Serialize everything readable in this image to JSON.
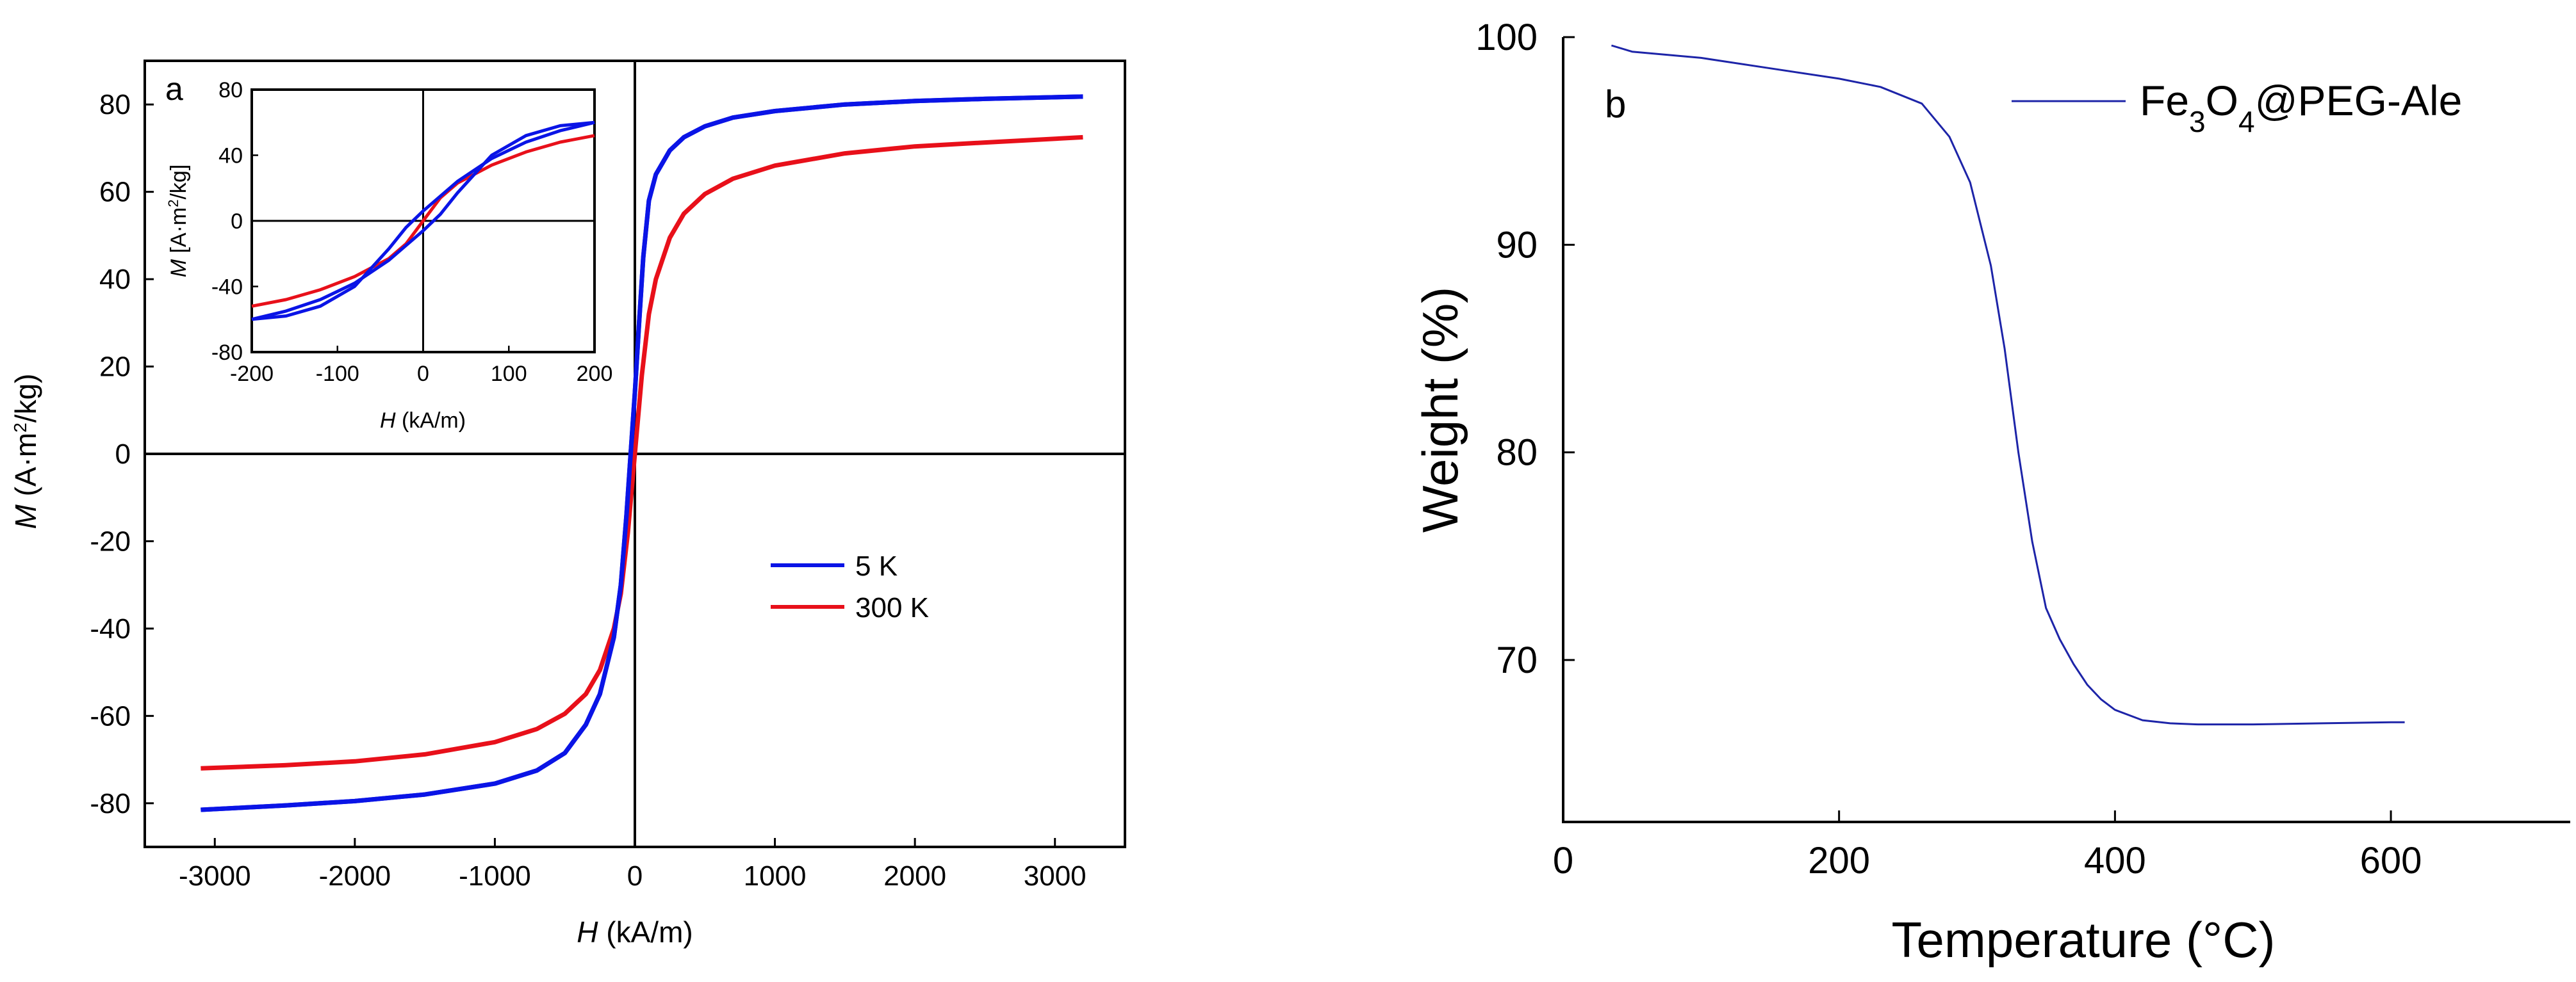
{
  "chart_data": [
    {
      "panel_label": "a",
      "type": "line",
      "title": "",
      "xlabel_symbol": "H",
      "xlabel_unit": " (kA/m)",
      "ylabel_symbol": "M",
      "ylabel_unit_pre": " (A·m",
      "ylabel_unit_sup": "2",
      "ylabel_unit_post": "/kg)",
      "xlim": [
        -3500,
        3500
      ],
      "ylim": [
        -90,
        90
      ],
      "x_ticks": [
        -3000,
        -2000,
        -1000,
        0,
        1000,
        2000,
        3000
      ],
      "x_tick_labels": [
        "-3000",
        "-2000",
        "-1000",
        "0",
        "1000",
        "2000",
        "3000"
      ],
      "y_ticks": [
        -80,
        -60,
        -40,
        -20,
        0,
        20,
        40,
        60,
        80
      ],
      "y_tick_labels": [
        "-80",
        "-60",
        "-40",
        "-20",
        "0",
        "20",
        "40",
        "60",
        "80"
      ],
      "grid": false,
      "legend_position": "center-right",
      "series": [
        {
          "name": "5 K",
          "color": "#0a14e6",
          "ascending": {
            "x": [
              -3100,
              -2500,
              -2000,
              -1500,
              -1000,
              -700,
              -500,
              -350,
              -250,
              -150,
              -100,
              -60,
              -30,
              0,
              30,
              60,
              100,
              150,
              250,
              350,
              500,
              700,
              1000,
              1500,
              2000,
              2500,
              3200
            ],
            "y": [
              -81.5,
              -80.5,
              -79.5,
              -78,
              -75.5,
              -72.5,
              -68.5,
              -62,
              -55,
              -42,
              -30,
              -14,
              0,
              14,
              30,
              45,
              58,
              64,
              69.5,
              72.5,
              75,
              77,
              78.5,
              80,
              80.8,
              81.3,
              81.8
            ]
          },
          "descending": {
            "x": [
              3200,
              2500,
              2000,
              1500,
              1000,
              700,
              500,
              350,
              250,
              150,
              100,
              60,
              30,
              0,
              -30,
              -60,
              -100,
              -150,
              -250,
              -350,
              -500,
              -700,
              -1000,
              -1500,
              -2000,
              -2500,
              -3100
            ],
            "y": [
              81.8,
              81.3,
              80.8,
              80,
              78.5,
              77,
              75,
              72.5,
              69.5,
              64,
              58,
              45,
              30,
              14,
              0,
              -14,
              -30,
              -42,
              -55,
              -62,
              -68.5,
              -72.5,
              -75.5,
              -78,
              -79.5,
              -80.5,
              -81.5
            ]
          }
        },
        {
          "name": "300 K",
          "color": "#e8101a",
          "ascending": {
            "x": [
              -3100,
              -2500,
              -2000,
              -1500,
              -1000,
              -700,
              -500,
              -350,
              -250,
              -150,
              -100,
              -50,
              0,
              50,
              100,
              150,
              250,
              350,
              500,
              700,
              1000,
              1500,
              2000,
              2500,
              3200
            ],
            "y": [
              -72,
              -71.3,
              -70.4,
              -68.8,
              -66,
              -63,
              -59.5,
              -55,
              -49.5,
              -40,
              -32,
              -18,
              0,
              18,
              32,
              40,
              49.5,
              55,
              59.5,
              63,
              66,
              68.8,
              70.4,
              71.3,
              72.5
            ]
          },
          "descending": null
        }
      ],
      "inset": {
        "xlabel_symbol": "H",
        "xlabel_unit": " (kA/m)",
        "ylabel_symbol": "M",
        "ylabel_unit_pre": " [A·m",
        "ylabel_unit_sup": "2",
        "ylabel_unit_post": "/kg]",
        "xlim": [
          -200,
          200
        ],
        "ylim": [
          -80,
          80
        ],
        "x_ticks": [
          -200,
          -100,
          0,
          100,
          200
        ],
        "x_tick_labels": [
          "-200",
          "-100",
          "0",
          "100",
          "200"
        ],
        "y_ticks": [
          -80,
          -40,
          0,
          40,
          80
        ],
        "y_tick_labels": [
          "-80",
          "-40",
          "0",
          "40",
          "80"
        ],
        "series": [
          {
            "name": "5 K",
            "color": "#0a14e6",
            "ascending": {
              "x": [
                -200,
                -160,
                -120,
                -80,
                -40,
                0,
                20,
                40,
                80,
                120,
                160,
                200
              ],
              "y": [
                -60,
                -55,
                -48,
                -38,
                -24,
                -6,
                4,
                17,
                40,
                52,
                58,
                60
              ]
            },
            "descending": {
              "x": [
                200,
                160,
                120,
                80,
                40,
                0,
                -20,
                -40,
                -80,
                -120,
                -160,
                -200
              ],
              "y": [
                60,
                55,
                48,
                38,
                24,
                6,
                -4,
                -17,
                -40,
                -52,
                -58,
                -60
              ]
            }
          },
          {
            "name": "300 K",
            "color": "#e8101a",
            "ascending": {
              "x": [
                -200,
                -160,
                -120,
                -80,
                -40,
                -20,
                0,
                20,
                40,
                80,
                120,
                160,
                200
              ],
              "y": [
                -52,
                -48,
                -42,
                -34,
                -23,
                -14,
                0,
                14,
                23,
                34,
                42,
                48,
                52
              ]
            },
            "descending": null
          }
        ]
      }
    },
    {
      "panel_label": "b",
      "type": "line",
      "title": "",
      "xlabel": "Temperature (°C)",
      "ylabel": "Weight (%)",
      "xlim": [
        0,
        730
      ],
      "ylim": [
        62.2,
        100
      ],
      "x_ticks": [
        0,
        200,
        400,
        600
      ],
      "x_tick_labels": [
        "0",
        "200",
        "400",
        "600"
      ],
      "y_ticks": [
        70,
        80,
        90,
        100
      ],
      "y_tick_labels": [
        "70",
        "80",
        "90",
        "100"
      ],
      "grid": false,
      "legend_position": "top-right",
      "series": [
        {
          "name_parts": [
            "Fe",
            "3",
            "O",
            "4",
            "@PEG-Ale"
          ],
          "color": "#1d24a8",
          "x": [
            35,
            50,
            100,
            150,
            200,
            230,
            260,
            280,
            295,
            310,
            320,
            330,
            340,
            350,
            360,
            370,
            380,
            390,
            400,
            420,
            440,
            460,
            500,
            550,
            600,
            610
          ],
          "y": [
            99.6,
            99.3,
            99.0,
            98.5,
            98.0,
            97.6,
            96.8,
            95.2,
            93.0,
            89.0,
            85.0,
            80.0,
            75.7,
            72.5,
            71.0,
            69.8,
            68.8,
            68.1,
            67.6,
            67.1,
            66.95,
            66.9,
            66.9,
            66.95,
            67.0,
            67.0
          ]
        }
      ]
    }
  ]
}
